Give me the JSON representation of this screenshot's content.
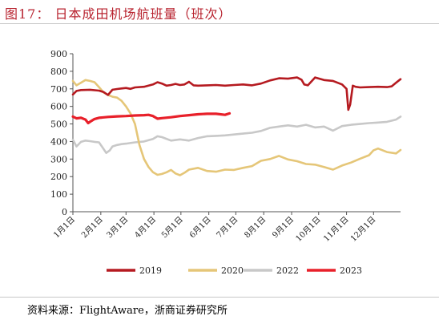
{
  "header": {
    "title": "图17：  日本成田机场航班量（班次）"
  },
  "footer": {
    "source": "资料来源：FlightAware，浙商证券研究所"
  },
  "chart_data": {
    "type": "line",
    "title": "",
    "xlabel": "",
    "ylabel": "",
    "ylim": [
      0,
      900
    ],
    "yticks": [
      0,
      100,
      200,
      300,
      400,
      500,
      600,
      700,
      800,
      900
    ],
    "x_tick_labels": [
      "1月1日",
      "2月1日",
      "3月1日",
      "4月1日",
      "5月1日",
      "6月1日",
      "7月1日",
      "8月1日",
      "9月1日",
      "10月1日",
      "11月1日",
      "12月1日"
    ],
    "x_tick_days": [
      1,
      32,
      60,
      91,
      121,
      152,
      182,
      213,
      244,
      274,
      305,
      335
    ],
    "x_range_days": [
      1,
      365
    ],
    "grid": false,
    "legend_position": "bottom",
    "series": [
      {
        "name": "2019",
        "color": "#b51a20",
        "x": [
          1,
          5,
          10,
          20,
          30,
          35,
          40,
          45,
          50,
          55,
          60,
          65,
          70,
          80,
          90,
          95,
          100,
          105,
          110,
          115,
          120,
          125,
          130,
          135,
          140,
          150,
          160,
          170,
          180,
          190,
          200,
          210,
          220,
          230,
          240,
          250,
          255,
          258,
          262,
          270,
          280,
          290,
          300,
          305,
          307,
          309,
          312,
          315,
          320,
          330,
          340,
          350,
          355,
          360,
          365
        ],
        "y": [
          668,
          688,
          693,
          695,
          690,
          682,
          665,
          695,
          699,
          702,
          705,
          700,
          708,
          712,
          725,
          738,
          730,
          718,
          722,
          728,
          722,
          725,
          740,
          720,
          718,
          720,
          722,
          718,
          722,
          725,
          720,
          730,
          748,
          760,
          758,
          765,
          752,
          725,
          720,
          765,
          750,
          745,
          725,
          700,
          580,
          610,
          718,
          712,
          708,
          710,
          712,
          710,
          714,
          735,
          755
        ]
      },
      {
        "name": "2020",
        "color": "#e5c678",
        "x": [
          1,
          5,
          10,
          15,
          20,
          25,
          30,
          35,
          40,
          45,
          50,
          55,
          60,
          65,
          70,
          75,
          80,
          85,
          90,
          95,
          100,
          105,
          110,
          115,
          120,
          125,
          130,
          140,
          150,
          160,
          170,
          180,
          190,
          200,
          210,
          220,
          230,
          240,
          250,
          260,
          270,
          280,
          290,
          300,
          310,
          320,
          330,
          335,
          340,
          350,
          360,
          365
        ],
        "y": [
          745,
          720,
          735,
          750,
          745,
          738,
          710,
          680,
          665,
          655,
          650,
          632,
          600,
          560,
          500,
          380,
          300,
          255,
          225,
          210,
          215,
          225,
          238,
          218,
          208,
          222,
          240,
          250,
          232,
          228,
          240,
          238,
          250,
          260,
          290,
          300,
          318,
          298,
          288,
          272,
          268,
          255,
          240,
          263,
          280,
          302,
          322,
          350,
          360,
          340,
          332,
          352
        ]
      },
      {
        "name": "2022",
        "color": "#c8c8c8",
        "x": [
          1,
          5,
          10,
          15,
          20,
          25,
          30,
          35,
          38,
          42,
          45,
          50,
          55,
          60,
          70,
          80,
          90,
          95,
          100,
          110,
          120,
          130,
          140,
          150,
          160,
          170,
          180,
          190,
          200,
          210,
          220,
          230,
          240,
          250,
          260,
          270,
          280,
          290,
          300,
          310,
          320,
          330,
          340,
          350,
          360,
          365
        ],
        "y": [
          410,
          372,
          398,
          405,
          402,
          398,
          395,
          358,
          335,
          350,
          372,
          380,
          385,
          388,
          395,
          400,
          415,
          430,
          425,
          405,
          412,
          405,
          420,
          430,
          432,
          435,
          440,
          445,
          450,
          460,
          478,
          485,
          492,
          485,
          495,
          480,
          485,
          462,
          488,
          495,
          500,
          505,
          508,
          512,
          525,
          542
        ]
      },
      {
        "name": "2023",
        "color": "#e8202a",
        "x": [
          1,
          5,
          10,
          15,
          18,
          20,
          25,
          30,
          40,
          50,
          60,
          70,
          80,
          85,
          90,
          95,
          100,
          110,
          120,
          130,
          140,
          150,
          160,
          170,
          175
        ],
        "y": [
          542,
          532,
          535,
          525,
          505,
          512,
          528,
          535,
          540,
          543,
          545,
          548,
          550,
          552,
          545,
          530,
          533,
          538,
          545,
          550,
          555,
          558,
          558,
          552,
          560
        ]
      }
    ]
  }
}
